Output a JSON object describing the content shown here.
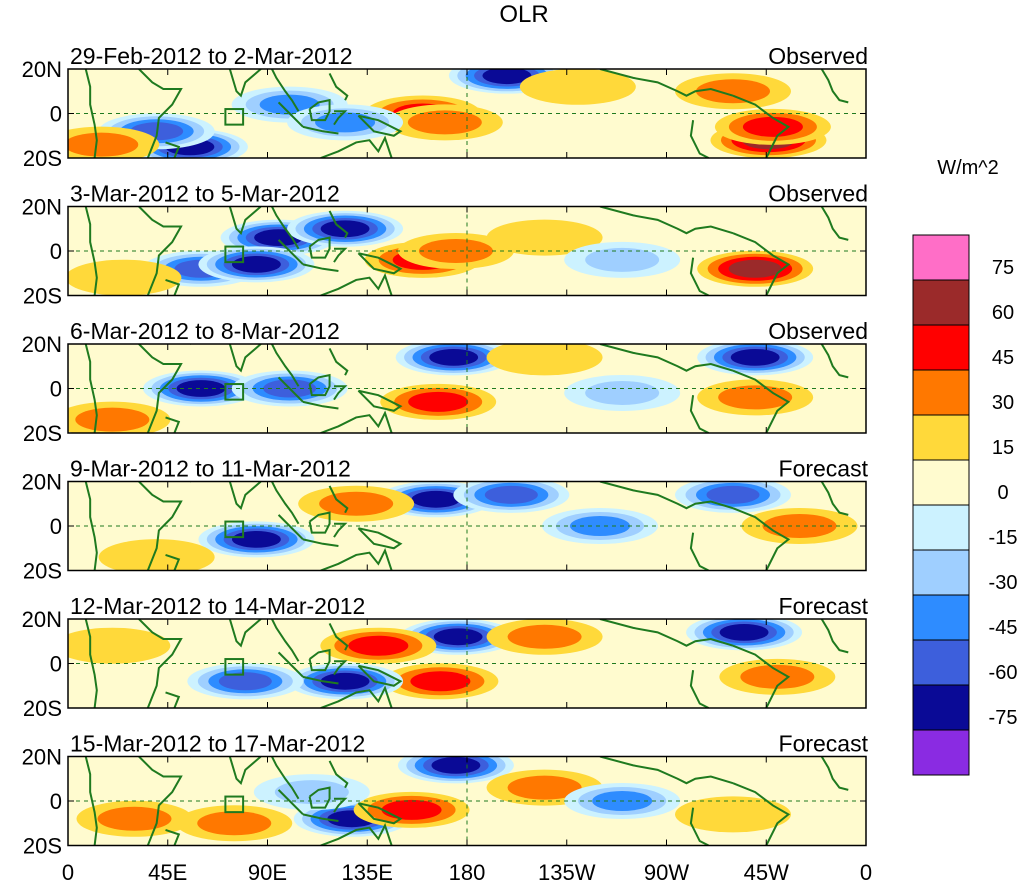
{
  "chart_data": {
    "type": "heatmap",
    "title": "OLR",
    "variable": "OLR",
    "units": "W/m^2",
    "x_ticks": [
      "0",
      "45E",
      "90E",
      "135E",
      "180",
      "135W",
      "90W",
      "45W",
      "0"
    ],
    "y_ticks": [
      "20N",
      "0",
      "20S"
    ],
    "xlim": [
      0,
      360
    ],
    "ylim": [
      -20,
      20
    ],
    "colorbar": {
      "label": "W/m^2",
      "levels": [
        "75",
        "60",
        "45",
        "30",
        "15",
        "0",
        "-15",
        "-30",
        "-45",
        "-60",
        "-75"
      ],
      "colors": [
        "#ff6ec7",
        "#9b2a2a",
        "#ff0000",
        "#ff7800",
        "#ffd93a",
        "#fffbcf",
        "#ccf2ff",
        "#9fcfff",
        "#2e8cff",
        "#3d5fdc",
        "#0a0a96",
        "#8a2be2"
      ]
    },
    "panels": [
      {
        "period": "29-Feb-2012 to 2-Mar-2012",
        "type": "Observed",
        "anomalies": [
          {
            "lon": 198,
            "lat": 17,
            "value": -75
          },
          {
            "lon": 160,
            "lat": 0,
            "value": 45
          },
          {
            "lon": 170,
            "lat": -4,
            "value": 30
          },
          {
            "lon": 316,
            "lat": -12,
            "value": 60
          },
          {
            "lon": 318,
            "lat": -6,
            "value": 45
          },
          {
            "lon": 55,
            "lat": -15,
            "value": -75
          },
          {
            "lon": 40,
            "lat": -8,
            "value": -60
          },
          {
            "lon": 100,
            "lat": 4,
            "value": -45
          },
          {
            "lon": 125,
            "lat": -4,
            "value": -45
          },
          {
            "lon": 15,
            "lat": -14,
            "value": 30
          },
          {
            "lon": 300,
            "lat": 10,
            "value": 30
          },
          {
            "lon": 230,
            "lat": 12,
            "value": 15
          }
        ]
      },
      {
        "period": "3-Mar-2012 to 5-Mar-2012",
        "type": "Observed",
        "anomalies": [
          {
            "lon": 95,
            "lat": 6,
            "value": -75
          },
          {
            "lon": 125,
            "lat": 10,
            "value": -75
          },
          {
            "lon": 160,
            "lat": -4,
            "value": 45
          },
          {
            "lon": 175,
            "lat": 0,
            "value": 30
          },
          {
            "lon": 310,
            "lat": -8,
            "value": 60
          },
          {
            "lon": 60,
            "lat": -8,
            "value": -60
          },
          {
            "lon": 85,
            "lat": -6,
            "value": -75
          },
          {
            "lon": 215,
            "lat": 6,
            "value": 15
          },
          {
            "lon": 250,
            "lat": -4,
            "value": -30
          },
          {
            "lon": 25,
            "lat": -12,
            "value": 15
          }
        ]
      },
      {
        "period": "6-Mar-2012 to 8-Mar-2012",
        "type": "Observed",
        "anomalies": [
          {
            "lon": 174,
            "lat": 14,
            "value": -75
          },
          {
            "lon": 167,
            "lat": -6,
            "value": 45
          },
          {
            "lon": 60,
            "lat": 0,
            "value": -75
          },
          {
            "lon": 100,
            "lat": 0,
            "value": -60
          },
          {
            "lon": 310,
            "lat": 14,
            "value": -75
          },
          {
            "lon": 215,
            "lat": 14,
            "value": 15
          },
          {
            "lon": 310,
            "lat": -4,
            "value": 30
          },
          {
            "lon": 20,
            "lat": -14,
            "value": 30
          },
          {
            "lon": 250,
            "lat": -2,
            "value": -30
          }
        ]
      },
      {
        "period": "9-Mar-2012 to 11-Mar-2012",
        "type": "Forecast",
        "anomalies": [
          {
            "lon": 166,
            "lat": 12,
            "value": -75
          },
          {
            "lon": 85,
            "lat": -6,
            "value": -75
          },
          {
            "lon": 130,
            "lat": 10,
            "value": 30
          },
          {
            "lon": 330,
            "lat": 0,
            "value": 30
          },
          {
            "lon": 300,
            "lat": 14,
            "value": -60
          },
          {
            "lon": 240,
            "lat": 0,
            "value": -45
          },
          {
            "lon": 200,
            "lat": 14,
            "value": -60
          },
          {
            "lon": 40,
            "lat": -14,
            "value": 15
          }
        ]
      },
      {
        "period": "12-Mar-2012 to 14-Mar-2012",
        "type": "Forecast",
        "anomalies": [
          {
            "lon": 176,
            "lat": 12,
            "value": -75
          },
          {
            "lon": 140,
            "lat": 8,
            "value": 45
          },
          {
            "lon": 168,
            "lat": -8,
            "value": 45
          },
          {
            "lon": 125,
            "lat": -8,
            "value": -75
          },
          {
            "lon": 80,
            "lat": -8,
            "value": -60
          },
          {
            "lon": 305,
            "lat": 14,
            "value": -75
          },
          {
            "lon": 320,
            "lat": -6,
            "value": 30
          },
          {
            "lon": 215,
            "lat": 12,
            "value": 30
          },
          {
            "lon": 20,
            "lat": 8,
            "value": 15
          }
        ]
      },
      {
        "period": "15-Mar-2012 to 17-Mar-2012",
        "type": "Forecast",
        "anomalies": [
          {
            "lon": 175,
            "lat": 16,
            "value": -75
          },
          {
            "lon": 128,
            "lat": -8,
            "value": -75
          },
          {
            "lon": 155,
            "lat": -4,
            "value": 45
          },
          {
            "lon": 215,
            "lat": 6,
            "value": 30
          },
          {
            "lon": 75,
            "lat": -10,
            "value": 30
          },
          {
            "lon": 250,
            "lat": 0,
            "value": -45
          },
          {
            "lon": 300,
            "lat": -6,
            "value": 15
          },
          {
            "lon": 30,
            "lat": -8,
            "value": 30
          },
          {
            "lon": 110,
            "lat": 4,
            "value": -30
          }
        ]
      }
    ]
  }
}
